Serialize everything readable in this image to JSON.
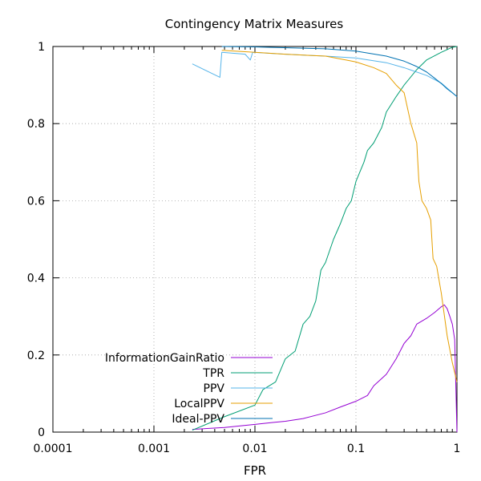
{
  "chart_data": {
    "type": "line",
    "title": "Contingency Matrix Measures",
    "xlabel": "FPR",
    "ylabel": "",
    "x_scale": "log",
    "xlim": [
      0.0001,
      1
    ],
    "ylim": [
      0,
      1
    ],
    "x_ticks": [
      {
        "value": 0.0001,
        "label": "0.0001"
      },
      {
        "value": 0.001,
        "label": "0.001"
      },
      {
        "value": 0.01,
        "label": "0.01"
      },
      {
        "value": 0.1,
        "label": "0.1"
      },
      {
        "value": 1,
        "label": "1"
      }
    ],
    "y_ticks": [
      {
        "value": 0,
        "label": "0"
      },
      {
        "value": 0.2,
        "label": "0.2"
      },
      {
        "value": 0.4,
        "label": "0.4"
      },
      {
        "value": 0.6,
        "label": "0.6"
      },
      {
        "value": 0.8,
        "label": "0.8"
      },
      {
        "value": 1,
        "label": "1"
      }
    ],
    "grid": true,
    "legend_position": "bottom-left",
    "series": [
      {
        "name": "InformationGainRatio",
        "color": "#9400d3",
        "points": [
          [
            0.0024,
            0.007
          ],
          [
            0.005,
            0.012
          ],
          [
            0.01,
            0.02
          ],
          [
            0.015,
            0.025
          ],
          [
            0.02,
            0.028
          ],
          [
            0.03,
            0.035
          ],
          [
            0.05,
            0.05
          ],
          [
            0.07,
            0.065
          ],
          [
            0.1,
            0.08
          ],
          [
            0.13,
            0.095
          ],
          [
            0.15,
            0.12
          ],
          [
            0.2,
            0.15
          ],
          [
            0.25,
            0.19
          ],
          [
            0.3,
            0.23
          ],
          [
            0.35,
            0.25
          ],
          [
            0.4,
            0.28
          ],
          [
            0.5,
            0.295
          ],
          [
            0.6,
            0.31
          ],
          [
            0.7,
            0.325
          ],
          [
            0.75,
            0.33
          ],
          [
            0.8,
            0.32
          ],
          [
            0.85,
            0.3
          ],
          [
            0.9,
            0.28
          ],
          [
            0.95,
            0.24
          ],
          [
            1.0,
            0.0
          ]
        ]
      },
      {
        "name": "TPR",
        "color": "#009e73",
        "points": [
          [
            0.0024,
            0.005
          ],
          [
            0.005,
            0.04
          ],
          [
            0.01,
            0.07
          ],
          [
            0.012,
            0.11
          ],
          [
            0.016,
            0.13
          ],
          [
            0.02,
            0.19
          ],
          [
            0.025,
            0.21
          ],
          [
            0.03,
            0.28
          ],
          [
            0.035,
            0.3
          ],
          [
            0.04,
            0.34
          ],
          [
            0.045,
            0.42
          ],
          [
            0.05,
            0.44
          ],
          [
            0.06,
            0.5
          ],
          [
            0.07,
            0.54
          ],
          [
            0.08,
            0.58
          ],
          [
            0.09,
            0.6
          ],
          [
            0.1,
            0.65
          ],
          [
            0.12,
            0.7
          ],
          [
            0.13,
            0.73
          ],
          [
            0.15,
            0.75
          ],
          [
            0.18,
            0.79
          ],
          [
            0.2,
            0.83
          ],
          [
            0.25,
            0.87
          ],
          [
            0.3,
            0.9
          ],
          [
            0.4,
            0.94
          ],
          [
            0.5,
            0.965
          ],
          [
            0.7,
            0.985
          ],
          [
            0.9,
            0.998
          ],
          [
            1.0,
            1.0
          ]
        ]
      },
      {
        "name": "PPV",
        "color": "#56b4e9",
        "points": [
          [
            0.0024,
            0.955
          ],
          [
            0.0045,
            0.92
          ],
          [
            0.0047,
            0.985
          ],
          [
            0.008,
            0.98
          ],
          [
            0.009,
            0.965
          ],
          [
            0.0095,
            0.985
          ],
          [
            0.02,
            0.98
          ],
          [
            0.05,
            0.975
          ],
          [
            0.1,
            0.97
          ],
          [
            0.2,
            0.958
          ],
          [
            0.3,
            0.945
          ],
          [
            0.5,
            0.925
          ],
          [
            0.7,
            0.905
          ],
          [
            1.0,
            0.87
          ]
        ]
      },
      {
        "name": "LocalPPV",
        "color": "#e69f00",
        "points": [
          [
            0.0047,
            0.99
          ],
          [
            0.01,
            0.985
          ],
          [
            0.02,
            0.98
          ],
          [
            0.05,
            0.975
          ],
          [
            0.08,
            0.965
          ],
          [
            0.1,
            0.96
          ],
          [
            0.15,
            0.945
          ],
          [
            0.2,
            0.93
          ],
          [
            0.25,
            0.9
          ],
          [
            0.3,
            0.88
          ],
          [
            0.35,
            0.8
          ],
          [
            0.4,
            0.75
          ],
          [
            0.42,
            0.65
          ],
          [
            0.45,
            0.6
          ],
          [
            0.5,
            0.58
          ],
          [
            0.55,
            0.55
          ],
          [
            0.58,
            0.45
          ],
          [
            0.63,
            0.43
          ],
          [
            0.7,
            0.36
          ],
          [
            0.8,
            0.25
          ],
          [
            0.9,
            0.18
          ],
          [
            1.0,
            0.13
          ]
        ]
      },
      {
        "name": "Ideal-PPV",
        "color": "#0072b2",
        "points": [
          [
            0.0047,
            1.0
          ],
          [
            0.01,
            0.999
          ],
          [
            0.05,
            0.994
          ],
          [
            0.1,
            0.988
          ],
          [
            0.2,
            0.975
          ],
          [
            0.3,
            0.962
          ],
          [
            0.4,
            0.948
          ],
          [
            0.5,
            0.934
          ],
          [
            0.6,
            0.918
          ],
          [
            0.7,
            0.904
          ],
          [
            0.8,
            0.89
          ],
          [
            0.9,
            0.88
          ],
          [
            1.0,
            0.87
          ]
        ]
      }
    ]
  }
}
